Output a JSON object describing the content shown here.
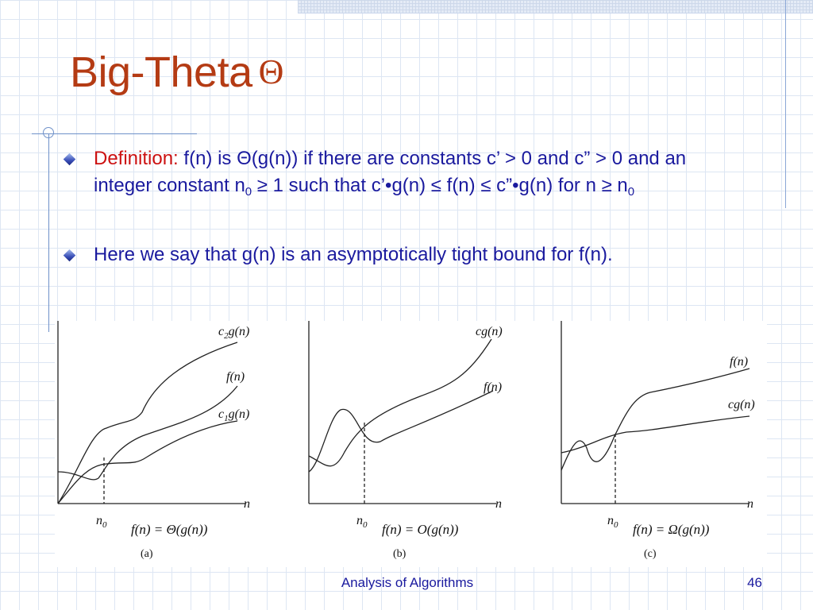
{
  "slide": {
    "title": "Big-Theta",
    "title_symbol": "Θ",
    "bullets": [
      {
        "label": "Definition:",
        "p1": " f(n) is Θ(g(n)) if there are constants c’ > 0 and c” > 0 and an integer constant n",
        "sub1": "0",
        "p2": " ≥ 1 such that c’•g(n) ≤ f(n) ≤ c”•g(n) for n ≥ n",
        "sub2": "0"
      },
      {
        "text": "Here we say that g(n) is an asymptotically tight bound for f(n)."
      }
    ],
    "footer": {
      "center": "Analysis of Algorithms",
      "page": "46"
    }
  },
  "figure": {
    "panels": [
      {
        "curves": [
          {
            "label_main": "c",
            "label_sub": "2",
            "label_tail": "g(n)"
          },
          {
            "label_main": "f(n)",
            "label_sub": "",
            "label_tail": ""
          },
          {
            "label_main": "c",
            "label_sub": "1",
            "label_tail": "g(n)"
          }
        ],
        "x_axis_label": "n",
        "threshold_label_main": "n",
        "threshold_label_sub": "0",
        "caption_formula": "f(n) = Θ(g(n))",
        "caption_tag": "(a)"
      },
      {
        "curves": [
          {
            "label_main": "cg(n)",
            "label_sub": "",
            "label_tail": ""
          },
          {
            "label_main": "f(n)",
            "label_sub": "",
            "label_tail": ""
          }
        ],
        "x_axis_label": "n",
        "threshold_label_main": "n",
        "threshold_label_sub": "0",
        "caption_formula": "f(n) = O(g(n))",
        "caption_tag": "(b)"
      },
      {
        "curves": [
          {
            "label_main": "f(n)",
            "label_sub": "",
            "label_tail": ""
          },
          {
            "label_main": "cg(n)",
            "label_sub": "",
            "label_tail": ""
          }
        ],
        "x_axis_label": "n",
        "threshold_label_main": "n",
        "threshold_label_sub": "0",
        "caption_formula": "f(n) = Ω(g(n))",
        "caption_tag": "(c)"
      }
    ]
  },
  "colors": {
    "title": "#b43b14",
    "body_text": "#1a1a9e",
    "definition_label": "#cc1111",
    "grid": "#dde6f3"
  }
}
